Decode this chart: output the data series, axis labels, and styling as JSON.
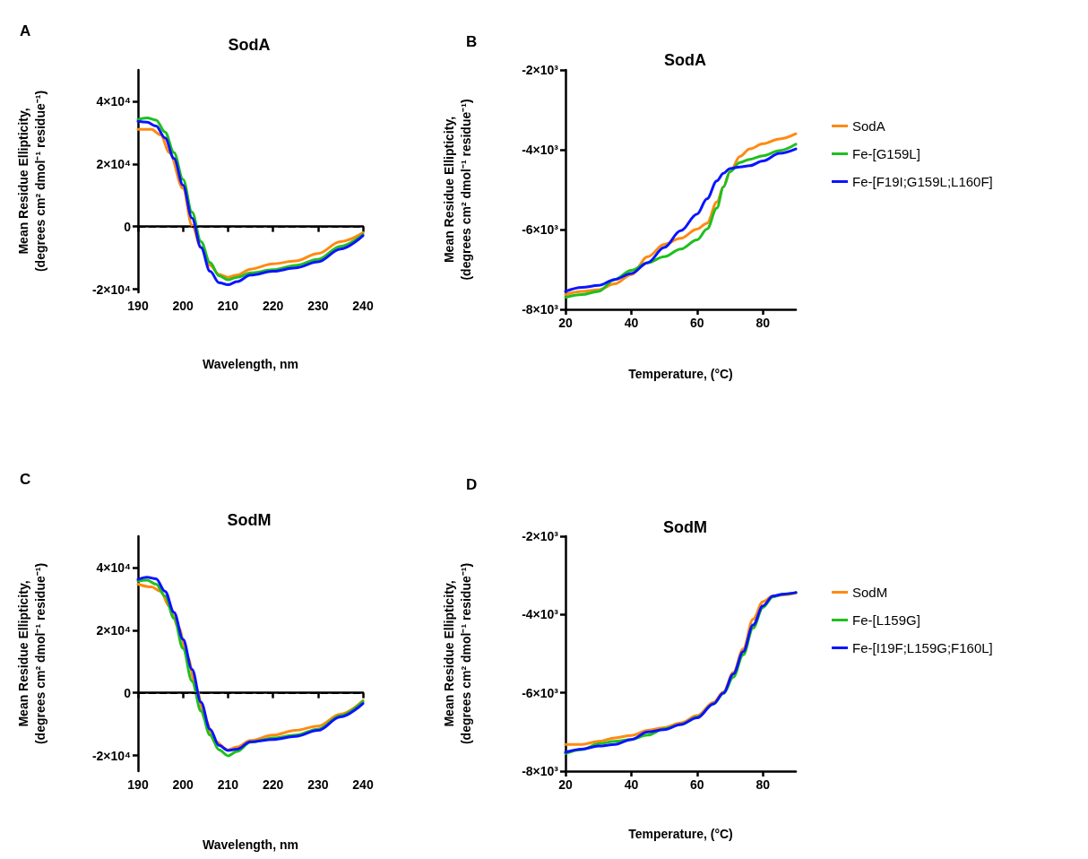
{
  "chart_data": [
    {
      "type": "line",
      "title": "SodA",
      "xlabel": "Wavelength, nm",
      "ylabel": "Mean Residue Ellipticity,\n(degrees cm² dmol⁻¹ residue⁻¹)",
      "annotations": [
        "A"
      ],
      "x": [
        190,
        192,
        194,
        196,
        198,
        200,
        202,
        204,
        206,
        208,
        210,
        212,
        215,
        220,
        225,
        230,
        235,
        240
      ],
      "series": [
        {
          "color": "#ff8a12",
          "x": [
            190,
            193,
            195,
            197,
            200,
            202,
            204,
            206,
            208,
            210,
            212,
            215,
            220,
            225,
            230,
            235,
            240
          ],
          "values": [
            31000,
            31000,
            29300,
            23600,
            12200,
            400,
            -6700,
            -12400,
            -15300,
            -16200,
            -15500,
            -13600,
            -11900,
            -11000,
            -8600,
            -4800,
            -2000
          ]
        },
        {
          "color": "#1fbf1f",
          "values": [
            34200,
            34700,
            34000,
            30200,
            23600,
            15100,
            4600,
            -4800,
            -11500,
            -15700,
            -17000,
            -16200,
            -14800,
            -13800,
            -12400,
            -10500,
            -6300,
            -2500
          ]
        },
        {
          "color": "#0a14ff",
          "values": [
            33600,
            33300,
            32100,
            28300,
            21700,
            13200,
            2700,
            -6700,
            -14300,
            -17900,
            -18600,
            -17600,
            -15500,
            -14300,
            -13200,
            -11300,
            -7200,
            -2900
          ]
        }
      ],
      "xlim": [
        190,
        240
      ],
      "xticks": [
        190,
        200,
        210,
        220,
        230,
        240
      ],
      "ylim": [
        -21000,
        50000
      ],
      "yticks": [
        {
          "value": -20000,
          "label": "-2×10⁴"
        },
        0,
        {
          "value": 20000,
          "label": "2×10⁴"
        },
        {
          "value": 40000,
          "label": "4×10⁴"
        }
      ],
      "ref_lines": [
        {
          "axis": "y",
          "value": 0,
          "line_style": "dashed",
          "color": "#000000"
        }
      ]
    },
    {
      "type": "line",
      "title": "SodA",
      "xlabel": "Temperature, (°C)",
      "ylabel": "Mean Residue Ellipticity,\n(degrees cm² dmol⁻¹ residue⁻¹)",
      "annotations": [
        "B"
      ],
      "legend": "right",
      "x": [
        20,
        25,
        30,
        35,
        40,
        45,
        50,
        55,
        60,
        63,
        66,
        68,
        70,
        73,
        76,
        80,
        85,
        90
      ],
      "series": [
        {
          "name": "SodA",
          "color": "#ff8a12",
          "values": [
            -7630,
            -7550,
            -7510,
            -7360,
            -7130,
            -6680,
            -6370,
            -6220,
            -5990,
            -5840,
            -5310,
            -4930,
            -4550,
            -4170,
            -3980,
            -3850,
            -3730,
            -3600
          ]
        },
        {
          "name": "Fe-[G159L]",
          "color": "#1fbf1f",
          "values": [
            -7700,
            -7630,
            -7550,
            -7250,
            -7020,
            -6830,
            -6680,
            -6490,
            -6260,
            -5990,
            -5460,
            -4930,
            -4550,
            -4320,
            -4240,
            -4150,
            -4020,
            -3860
          ]
        },
        {
          "name": "Fe-[F19I;G159L;L160F]",
          "color": "#0a14ff",
          "values": [
            -7550,
            -7450,
            -7400,
            -7250,
            -7100,
            -6830,
            -6450,
            -6030,
            -5610,
            -5230,
            -4780,
            -4590,
            -4470,
            -4430,
            -4400,
            -4280,
            -4090,
            -3980
          ]
        }
      ],
      "xlim": [
        20,
        90
      ],
      "xticks": [
        20,
        40,
        60,
        80
      ],
      "ylim": [
        -8000,
        -2000
      ],
      "yticks": [
        {
          "value": -8000,
          "label": "-8×10³"
        },
        {
          "value": -6000,
          "label": "-6×10³"
        },
        {
          "value": -4000,
          "label": "-4×10³"
        },
        {
          "value": -2000,
          "label": "-2×10³"
        }
      ]
    },
    {
      "type": "line",
      "title": "SodM",
      "xlabel": "Wavelength, nm",
      "ylabel": "Mean Residue Ellipticity,\n(degrees cm² dmol⁻¹ residue⁻¹)",
      "annotations": [
        "C"
      ],
      "x": [
        190,
        192,
        194,
        196,
        198,
        200,
        202,
        204,
        206,
        208,
        210,
        212,
        215,
        220,
        225,
        230,
        235,
        240
      ],
      "series": [
        {
          "color": "#ff8a12",
          "x": [
            190,
            193,
            195,
            197,
            199,
            201,
            203,
            205,
            207,
            210,
            212,
            215,
            220,
            225,
            230,
            235,
            240
          ],
          "values": [
            34700,
            33800,
            32400,
            27600,
            20900,
            11400,
            900,
            -8700,
            -15400,
            -18200,
            -17300,
            -15200,
            -13500,
            -12000,
            -10600,
            -6800,
            -2500
          ]
        },
        {
          "color": "#1fbf1f",
          "values": [
            35700,
            36000,
            34700,
            30900,
            23800,
            14200,
            3700,
            -5800,
            -13500,
            -18200,
            -20100,
            -18700,
            -15800,
            -14400,
            -13500,
            -11600,
            -7300,
            -2800
          ]
        },
        {
          "color": "#0a14ff",
          "values": [
            36200,
            36900,
            36400,
            32400,
            25700,
            17100,
            7500,
            -3000,
            -11600,
            -16800,
            -18400,
            -18000,
            -15600,
            -14900,
            -13900,
            -12000,
            -7700,
            -3400
          ]
        }
      ],
      "xlim": [
        190,
        240
      ],
      "xticks": [
        190,
        200,
        210,
        220,
        230,
        240
      ],
      "ylim": [
        -25000,
        50000
      ],
      "yticks": [
        {
          "value": -20000,
          "label": "-2×10⁴"
        },
        0,
        {
          "value": 20000,
          "label": "2×10⁴"
        },
        {
          "value": 40000,
          "label": "4×10⁴"
        }
      ],
      "ref_lines": [
        {
          "axis": "y",
          "value": 0,
          "line_style": "dashed",
          "color": "#000000"
        }
      ]
    },
    {
      "type": "line",
      "title": "SodM",
      "xlabel": "Temperature, (°C)",
      "ylabel": "Mean Residue Ellipticity,\n(degrees cm² dmol⁻¹ residue⁻¹)",
      "annotations": [
        "D"
      ],
      "legend": "right",
      "x": [
        20,
        25,
        30,
        35,
        40,
        45,
        50,
        55,
        60,
        65,
        68,
        71,
        74,
        77,
        80,
        83,
        86,
        90
      ],
      "series": [
        {
          "name": "SodM",
          "color": "#ff8a12",
          "values": [
            -7320,
            -7320,
            -7240,
            -7150,
            -7090,
            -6960,
            -6890,
            -6770,
            -6580,
            -6240,
            -5980,
            -5480,
            -4880,
            -4120,
            -3670,
            -3530,
            -3500,
            -3450
          ]
        },
        {
          "name": "Fe-[L159G]",
          "color": "#1fbf1f",
          "values": [
            -7550,
            -7450,
            -7300,
            -7240,
            -7190,
            -7080,
            -6920,
            -6810,
            -6620,
            -6280,
            -6020,
            -5600,
            -5030,
            -4350,
            -3820,
            -3550,
            -3480,
            -3440
          ]
        },
        {
          "name": "Fe-[I19F;L159G;F160L]",
          "color": "#0a14ff",
          "values": [
            -7520,
            -7440,
            -7360,
            -7320,
            -7190,
            -7000,
            -6940,
            -6810,
            -6640,
            -6280,
            -6000,
            -5520,
            -4950,
            -4270,
            -3780,
            -3530,
            -3480,
            -3440
          ]
        }
      ],
      "xlim": [
        20,
        90
      ],
      "xticks": [
        20,
        40,
        60,
        80
      ],
      "ylim": [
        -8000,
        -2000
      ],
      "yticks": [
        {
          "value": -8000,
          "label": "-8×10³"
        },
        {
          "value": -6000,
          "label": "-6×10³"
        },
        {
          "value": -4000,
          "label": "-4×10³"
        },
        {
          "value": -2000,
          "label": "-2×10³"
        }
      ]
    }
  ]
}
